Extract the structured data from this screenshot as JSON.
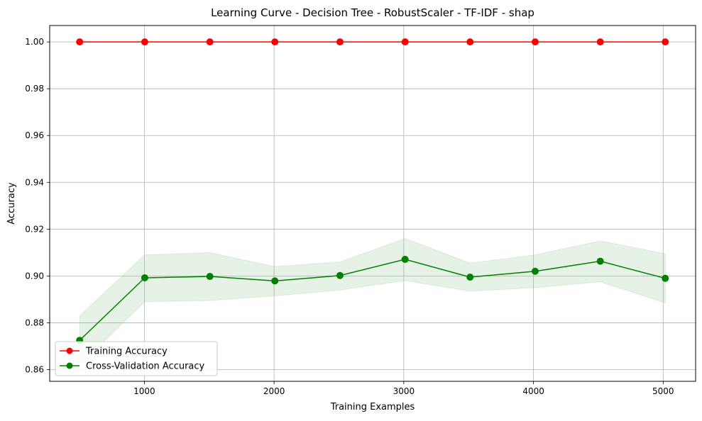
{
  "chart_data": {
    "type": "line",
    "title": "Learning Curve - Decision Tree - RobustScaler - TF-IDF - shap",
    "xlabel": "Training Examples",
    "ylabel": "Accuracy",
    "xlim": [
      270,
      5250
    ],
    "ylim": [
      0.855,
      1.007
    ],
    "xticks": [
      1000,
      2000,
      3000,
      4000,
      5000
    ],
    "xtick_labels": [
      "1000",
      "2000",
      "3000",
      "4000",
      "5000"
    ],
    "yticks": [
      0.86,
      0.88,
      0.9,
      0.92,
      0.94,
      0.96,
      0.98,
      1.0
    ],
    "ytick_labels": [
      "0.86",
      "0.88",
      "0.90",
      "0.92",
      "0.94",
      "0.96",
      "0.98",
      "1.00"
    ],
    "grid": true,
    "legend_position": "lower-left",
    "x": [
      501,
      1003,
      1505,
      2006,
      2508,
      3010,
      3511,
      4013,
      4515,
      5016
    ],
    "series": [
      {
        "name": "Training Accuracy",
        "color": "#ff0000",
        "marker": "circle",
        "values": [
          1.0,
          1.0,
          1.0,
          1.0,
          1.0,
          1.0,
          1.0,
          1.0,
          1.0,
          1.0
        ],
        "band_lower": [
          1.0,
          1.0,
          1.0,
          1.0,
          1.0,
          1.0,
          1.0,
          1.0,
          1.0,
          1.0
        ],
        "band_upper": [
          1.0,
          1.0,
          1.0,
          1.0,
          1.0,
          1.0,
          1.0,
          1.0,
          1.0,
          1.0
        ],
        "band_color": "#ff0000"
      },
      {
        "name": "Cross-Validation Accuracy",
        "color": "#008000",
        "marker": "circle",
        "values": [
          0.8725,
          0.8992,
          0.8998,
          0.8979,
          0.9002,
          0.9071,
          0.8995,
          0.902,
          0.9063,
          0.899
        ],
        "band_lower": [
          0.862,
          0.889,
          0.8895,
          0.8915,
          0.894,
          0.898,
          0.8935,
          0.895,
          0.8975,
          0.8885
        ],
        "band_upper": [
          0.883,
          0.909,
          0.91,
          0.904,
          0.906,
          0.916,
          0.9055,
          0.909,
          0.915,
          0.9095
        ],
        "band_color": "#008000"
      }
    ]
  }
}
